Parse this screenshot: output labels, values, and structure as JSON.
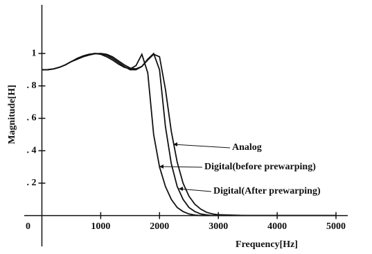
{
  "chart_data": {
    "type": "line",
    "x_label": "Frequency[Hz]",
    "y_label": "Magnitude[H]",
    "x": [
      0,
      100,
      200,
      300,
      400,
      500,
      600,
      700,
      800,
      900,
      1000,
      1100,
      1200,
      1300,
      1400,
      1500,
      1600,
      1700,
      1800,
      1900,
      2000,
      2100,
      2200,
      2300,
      2400,
      2500,
      2600,
      2700,
      2800,
      2900,
      3000,
      3500,
      4000,
      4500,
      5000
    ],
    "series": [
      {
        "name": "Analog",
        "color": "#111111",
        "values": [
          0.9,
          0.9,
          0.905,
          0.915,
          0.93,
          0.95,
          0.965,
          0.98,
          0.99,
          0.998,
          1.0,
          0.995,
          0.98,
          0.955,
          0.93,
          0.91,
          0.905,
          0.92,
          0.96,
          0.995,
          0.98,
          0.78,
          0.52,
          0.33,
          0.2,
          0.12,
          0.07,
          0.04,
          0.02,
          0.01,
          0.005,
          0,
          0,
          0,
          0
        ]
      },
      {
        "name": "Digital(before prewarping)",
        "color": "#111111",
        "values": [
          0.9,
          0.9,
          0.905,
          0.915,
          0.93,
          0.95,
          0.97,
          0.985,
          0.995,
          1.0,
          0.995,
          0.98,
          0.96,
          0.935,
          0.915,
          0.905,
          0.925,
          0.995,
          0.88,
          0.5,
          0.3,
          0.18,
          0.1,
          0.05,
          0.025,
          0.01,
          0.003,
          0,
          0,
          0,
          0,
          0,
          0,
          0,
          0
        ]
      },
      {
        "name": "Digital(After prewarping)",
        "color": "#111111",
        "values": [
          0.9,
          0.9,
          0.905,
          0.915,
          0.93,
          0.95,
          0.965,
          0.98,
          0.992,
          1.0,
          0.998,
          0.99,
          0.97,
          0.945,
          0.92,
          0.9,
          0.9,
          0.92,
          0.965,
          1.0,
          0.9,
          0.55,
          0.32,
          0.18,
          0.1,
          0.05,
          0.025,
          0.01,
          0.004,
          0,
          0,
          0,
          0,
          0,
          0
        ]
      }
    ],
    "xlim": [
      -300,
      5200
    ],
    "ylim": [
      -0.19,
      1.3
    ],
    "xticks": [
      0,
      1000,
      2000,
      3000,
      4000,
      5000
    ],
    "yticks": [
      {
        "value": 0.2,
        "label": ". 2"
      },
      {
        "value": 0.4,
        "label": ". 4"
      },
      {
        "value": 0.6,
        "label": ". 6"
      },
      {
        "value": 0.8,
        "label": ". 8"
      },
      1
    ],
    "grid": false
  }
}
